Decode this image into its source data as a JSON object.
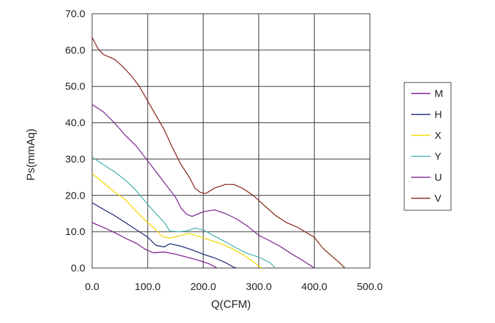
{
  "chart_data": {
    "type": "line",
    "xlabel": "Q(CFM)",
    "ylabel": "Ps(mmAq)",
    "xlim": [
      0,
      500
    ],
    "ylim": [
      0,
      70
    ],
    "xticks": [
      "0.0",
      "100.0",
      "200.0",
      "300.0",
      "400.0",
      "500.0"
    ],
    "yticks": [
      "0.0",
      "10.0",
      "20.0",
      "30.0",
      "40.0",
      "50.0",
      "60.0",
      "70.0"
    ],
    "grid": true,
    "legend_position": "right",
    "series": [
      {
        "name": "M",
        "color": "#7B1F8E",
        "points": [
          [
            0,
            12.5
          ],
          [
            20,
            11.2
          ],
          [
            40,
            9.8
          ],
          [
            60,
            8.2
          ],
          [
            80,
            6.8
          ],
          [
            95,
            5.2
          ],
          [
            110,
            4.2
          ],
          [
            130,
            4.4
          ],
          [
            150,
            3.8
          ],
          [
            170,
            3.0
          ],
          [
            190,
            2.2
          ],
          [
            210,
            1.2
          ],
          [
            225,
            0
          ]
        ]
      },
      {
        "name": "H",
        "color": "#1F2C7A",
        "points": [
          [
            0,
            18
          ],
          [
            20,
            16.2
          ],
          [
            40,
            14.5
          ],
          [
            60,
            12.5
          ],
          [
            80,
            10.5
          ],
          [
            100,
            8.5
          ],
          [
            115,
            6.2
          ],
          [
            130,
            5.8
          ],
          [
            140,
            6.7
          ],
          [
            160,
            6.0
          ],
          [
            180,
            5.0
          ],
          [
            200,
            3.8
          ],
          [
            220,
            2.8
          ],
          [
            240,
            1.5
          ],
          [
            255,
            0.2
          ],
          [
            260,
            0
          ]
        ]
      },
      {
        "name": "X",
        "color": "#F2D700",
        "points": [
          [
            0,
            26
          ],
          [
            20,
            23.5
          ],
          [
            40,
            21
          ],
          [
            60,
            18.8
          ],
          [
            80,
            15.5
          ],
          [
            100,
            12.5
          ],
          [
            115,
            10.5
          ],
          [
            125,
            8.8
          ],
          [
            140,
            8.2
          ],
          [
            160,
            9.0
          ],
          [
            175,
            9.5
          ],
          [
            190,
            8.8
          ],
          [
            210,
            7.8
          ],
          [
            230,
            6.8
          ],
          [
            250,
            5.5
          ],
          [
            270,
            3.8
          ],
          [
            290,
            1.8
          ],
          [
            300,
            0.5
          ],
          [
            305,
            0
          ]
        ]
      },
      {
        "name": "Y",
        "color": "#4BB2B0",
        "points": [
          [
            0,
            30.5
          ],
          [
            20,
            28.5
          ],
          [
            40,
            26.5
          ],
          [
            60,
            24.2
          ],
          [
            80,
            21.2
          ],
          [
            100,
            17.5
          ],
          [
            115,
            15
          ],
          [
            130,
            12.5
          ],
          [
            140,
            10.2
          ],
          [
            155,
            10.0
          ],
          [
            170,
            10.2
          ],
          [
            185,
            11.0
          ],
          [
            200,
            10.5
          ],
          [
            220,
            8.8
          ],
          [
            240,
            7.2
          ],
          [
            260,
            5.5
          ],
          [
            280,
            4.0
          ],
          [
            300,
            3.0
          ],
          [
            320,
            1.5
          ],
          [
            330,
            0
          ]
        ]
      },
      {
        "name": "U",
        "color": "#7B2A8E",
        "points": [
          [
            0,
            45
          ],
          [
            20,
            43
          ],
          [
            40,
            40
          ],
          [
            60,
            36.5
          ],
          [
            80,
            33.5
          ],
          [
            100,
            29.5
          ],
          [
            120,
            25.5
          ],
          [
            135,
            22.5
          ],
          [
            150,
            19.5
          ],
          [
            160,
            16.5
          ],
          [
            170,
            14.8
          ],
          [
            180,
            14.2
          ],
          [
            200,
            15.5
          ],
          [
            220,
            16
          ],
          [
            240,
            15
          ],
          [
            260,
            13.5
          ],
          [
            280,
            11.5
          ],
          [
            300,
            9
          ],
          [
            320,
            7.5
          ],
          [
            340,
            5.8
          ],
          [
            360,
            3.8
          ],
          [
            380,
            2.0
          ],
          [
            395,
            0.5
          ],
          [
            400,
            0
          ]
        ]
      },
      {
        "name": "V",
        "color": "#8B2A1F",
        "points": [
          [
            0,
            63.5
          ],
          [
            10,
            60.5
          ],
          [
            20,
            58.8
          ],
          [
            40,
            57.5
          ],
          [
            55,
            55.5
          ],
          [
            70,
            53
          ],
          [
            85,
            50
          ],
          [
            100,
            46
          ],
          [
            115,
            42
          ],
          [
            130,
            38
          ],
          [
            145,
            33
          ],
          [
            160,
            28.5
          ],
          [
            175,
            25
          ],
          [
            185,
            22
          ],
          [
            195,
            20.8
          ],
          [
            205,
            20.5
          ],
          [
            220,
            22
          ],
          [
            240,
            23
          ],
          [
            255,
            23
          ],
          [
            270,
            22
          ],
          [
            290,
            20
          ],
          [
            310,
            17.2
          ],
          [
            330,
            14.5
          ],
          [
            350,
            12.5
          ],
          [
            370,
            11.2
          ],
          [
            385,
            9.8
          ],
          [
            400,
            8.5
          ],
          [
            415,
            5.5
          ],
          [
            430,
            3.5
          ],
          [
            445,
            1.5
          ],
          [
            455,
            0
          ]
        ]
      }
    ]
  }
}
